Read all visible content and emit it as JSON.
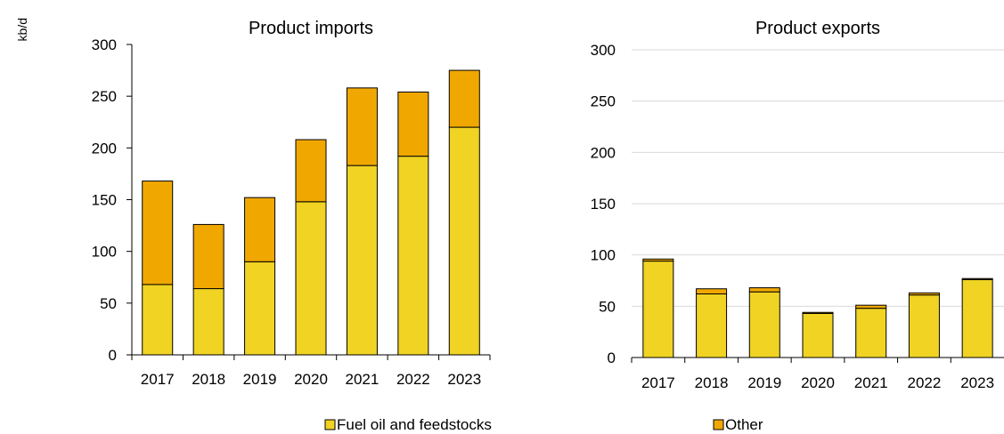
{
  "unit_label": "kb/d",
  "colors": {
    "fuel": "#f0d323",
    "other": "#f0a800",
    "edge": "#000000"
  },
  "legend": [
    {
      "label": "Fuel oil and feedstocks",
      "color": "#f0d323"
    },
    {
      "label": "Other",
      "color": "#f0a800"
    }
  ],
  "chart_data": [
    {
      "type": "bar",
      "stacked": true,
      "title": "Product imports",
      "ylabel": "kb/d",
      "categories": [
        "2017",
        "2018",
        "2019",
        "2020",
        "2021",
        "2022",
        "2023"
      ],
      "ylim": [
        0,
        300
      ],
      "yticks": [
        0,
        50,
        100,
        150,
        200,
        250,
        300
      ],
      "grid": false,
      "series": [
        {
          "name": "Fuel oil and feedstocks",
          "values": [
            68,
            64,
            90,
            148,
            183,
            192,
            220
          ]
        },
        {
          "name": "Other",
          "values": [
            100,
            62,
            62,
            60,
            75,
            62,
            55
          ]
        }
      ]
    },
    {
      "type": "bar",
      "stacked": true,
      "title": "Product exports",
      "categories": [
        "2017",
        "2018",
        "2019",
        "2020",
        "2021",
        "2022",
        "2023"
      ],
      "ylim": [
        0,
        300
      ],
      "yticks": [
        0,
        50,
        100,
        150,
        200,
        250,
        300
      ],
      "grid": true,
      "series": [
        {
          "name": "Fuel oil and feedstocks",
          "values": [
            94,
            62,
            64,
            43,
            48,
            61,
            76
          ]
        },
        {
          "name": "Other",
          "values": [
            2,
            5,
            4,
            1,
            3,
            2,
            1
          ]
        }
      ]
    }
  ]
}
